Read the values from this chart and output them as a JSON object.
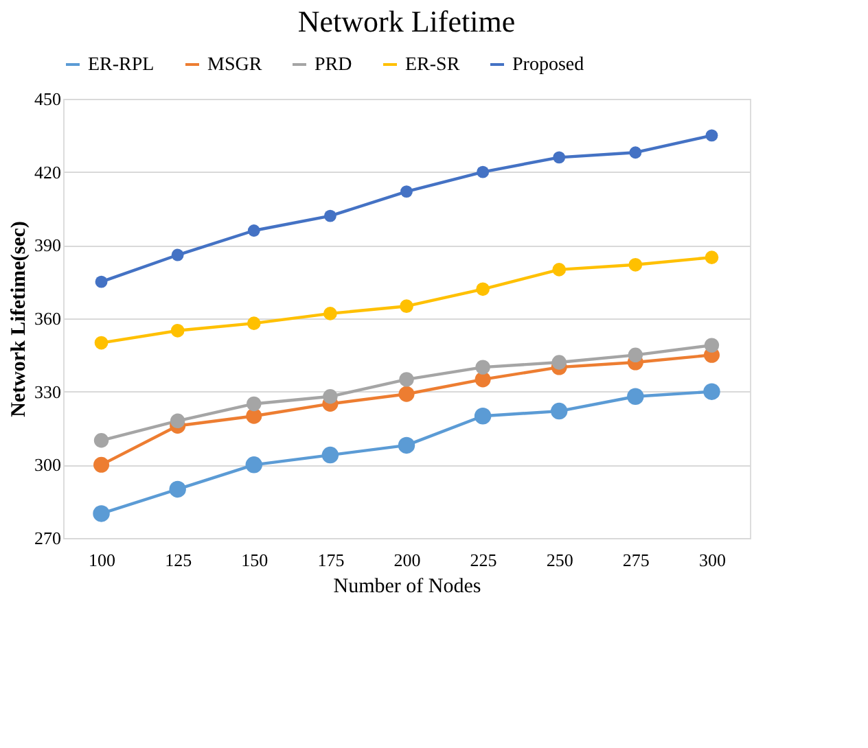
{
  "chart_data": {
    "type": "line",
    "title": "Network Lifetime",
    "xlabel": "Number of Nodes",
    "ylabel": "Network Lifetime(sec)",
    "categories": [
      "100",
      "125",
      "150",
      "175",
      "200",
      "225",
      "250",
      "275",
      "300"
    ],
    "series": [
      {
        "name": "ER-RPL",
        "color": "#5b9bd5",
        "values": [
          280,
          290,
          300,
          304,
          308,
          320,
          322,
          328,
          330
        ]
      },
      {
        "name": "MSGR",
        "color": "#ed7d31",
        "values": [
          300,
          316,
          320,
          325,
          329,
          335,
          340,
          342,
          345
        ]
      },
      {
        "name": "PRD",
        "color": "#a5a5a5",
        "values": [
          310,
          318,
          325,
          328,
          335,
          340,
          342,
          345,
          349
        ]
      },
      {
        "name": "ER-SR",
        "color": "#ffc000",
        "values": [
          350,
          355,
          358,
          362,
          365,
          372,
          380,
          382,
          385
        ]
      },
      {
        "name": "Proposed",
        "color": "#4472c4",
        "values": [
          375,
          386,
          396,
          402,
          412,
          420,
          426,
          428,
          435
        ]
      }
    ],
    "ylim": [
      270,
      450
    ],
    "yticks": [
      270,
      300,
      330,
      360,
      390,
      420,
      450
    ],
    "grid": "y",
    "legend": "top",
    "marker": "circle",
    "line_style": "solid"
  }
}
